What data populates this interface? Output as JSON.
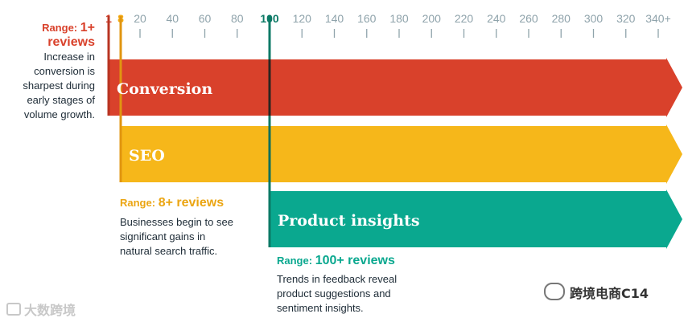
{
  "chart_data": {
    "type": "range-timeline",
    "x_axis": {
      "ticks": [
        {
          "value": 1,
          "label": "1",
          "color": "#d2402a"
        },
        {
          "value": 8,
          "label": "8",
          "color": "#f4ab14"
        },
        {
          "value": 20,
          "label": "20"
        },
        {
          "value": 40,
          "label": "40"
        },
        {
          "value": 60,
          "label": "60"
        },
        {
          "value": 80,
          "label": "80"
        },
        {
          "value": 100,
          "label": "100",
          "color": "#0c7a66"
        },
        {
          "value": 120,
          "label": "120"
        },
        {
          "value": 140,
          "label": "140"
        },
        {
          "value": 160,
          "label": "160"
        },
        {
          "value": 180,
          "label": "180"
        },
        {
          "value": 200,
          "label": "200"
        },
        {
          "value": 220,
          "label": "220"
        },
        {
          "value": 240,
          "label": "240"
        },
        {
          "value": 260,
          "label": "260"
        },
        {
          "value": 280,
          "label": "280"
        },
        {
          "value": 300,
          "label": "300"
        },
        {
          "value": 320,
          "label": "320"
        },
        {
          "value": 340,
          "label": "340+"
        }
      ],
      "tick_color": "#8fa3ab",
      "range": [
        1,
        340
      ]
    },
    "series": [
      {
        "name": "Conversion",
        "start": 1,
        "end": 340,
        "color": "#d9412b",
        "range_label": "Range:",
        "range_value": "1+ reviews",
        "description": [
          "Increase in",
          "conversion is",
          "sharpest during",
          "early stages of",
          "volume growth."
        ]
      },
      {
        "name": "SEO",
        "start": 8,
        "end": 340,
        "color": "#f6b71a",
        "range_label": "Range:",
        "range_value": "8+ reviews",
        "description": [
          "Businesses begin to see",
          "significant gains in",
          "natural search traffic."
        ]
      },
      {
        "name": "Product insights",
        "start": 100,
        "end": 340,
        "color": "#0aa88f",
        "range_label": "Range:",
        "range_value": "100+ reviews",
        "description": [
          "Trends in feedback reveal",
          "product suggestions and",
          "sentiment insights."
        ]
      }
    ],
    "watermarks": [
      "大数跨境",
      "跨境电商C14"
    ]
  }
}
